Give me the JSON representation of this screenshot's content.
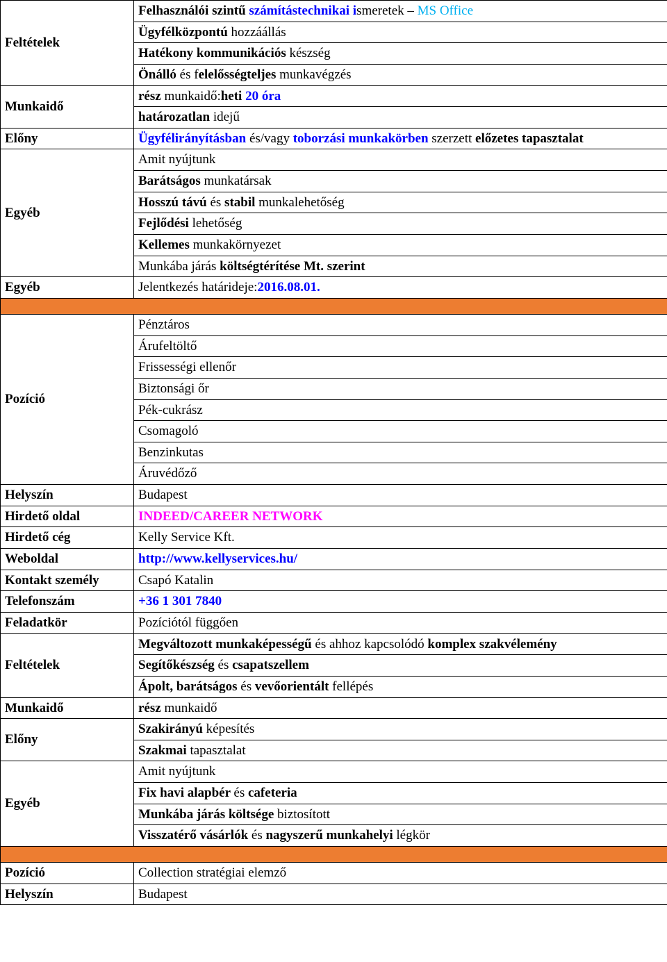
{
  "colors": {
    "border": "#000000",
    "orange": "#ed7d31",
    "blue": "#0000ff",
    "cyan": "#00b0f0",
    "magenta": "#ff00ff",
    "text": "#000000",
    "background": "#ffffff"
  },
  "typography": {
    "font_family": "Times New Roman",
    "font_size_pt": 14
  },
  "section1": {
    "feltetelek": {
      "label": "Feltételek",
      "r1": {
        "p1": "Felhasználói szintű ",
        "p2": "számítástechnikai i",
        "p3": "smeretek – ",
        "p4": "MS Office"
      },
      "r2": {
        "p1": "Ügyfélközpontú",
        "p2": " hozzáállás"
      },
      "r3": {
        "p1": "Hatékony kommunikációs",
        "p2": " készség"
      },
      "r4": {
        "p1": "Önálló",
        "p2": " és f",
        "p3": "elelősségteljes",
        "p4": " munkavégzés"
      }
    },
    "munkaido": {
      "label": "Munkaidő",
      "r1": {
        "p1": "rész",
        "p2": " munkaidő:",
        "p3": "heti ",
        "p4": "20 óra"
      },
      "r2": {
        "p1": "határozatlan",
        "p2": " idejű"
      }
    },
    "elony": {
      "label": "Előny",
      "r1": {
        "p1": "Ügyfélirányításban ",
        "p2": "és/vagy ",
        "p3": "toborzási munkakörben ",
        "p4": "szerzett ",
        "p5": "előzetes tapasztalat"
      }
    },
    "egyeb1": {
      "label": "Egyéb",
      "r1": "Amit nyújtunk",
      "r2": {
        "p1": "Barátságos",
        "p2": " munkatársak"
      },
      "r3": {
        "p1": "Hosszú távú",
        "p2": " és ",
        "p3": "stabil",
        "p4": " munkalehetőség"
      },
      "r4": {
        "p1": "Fejlődési",
        "p2": " lehetőség"
      },
      "r5": {
        "p1": "Kellemes",
        "p2": " munkakörnyezet"
      },
      "r6": {
        "p1": "Munkába járás ",
        "p2": "költségtérítése Mt. szerint"
      }
    },
    "egyeb2": {
      "label": "Egyéb",
      "r1": {
        "p1": "Jelentkezés határideje:",
        "p2": "2016.08.01."
      }
    }
  },
  "section2": {
    "pozicio": {
      "label": "Pozíció",
      "items": [
        "Pénztáros",
        "Árufeltöltő",
        "Frissességi ellenőr",
        "Biztonsági őr",
        "Pék-cukrász",
        "Csomagoló",
        "Benzinkutas",
        "Áruvédőző"
      ]
    },
    "helyszin": {
      "label": "Helyszín",
      "value": "Budapest"
    },
    "hirdeto_oldal": {
      "label": "Hirdető oldal",
      "value": "INDEED/CAREER NETWORK"
    },
    "hirdeto_ceg": {
      "label": "Hirdető cég",
      "value": "Kelly Service Kft."
    },
    "weboldal": {
      "label": "Weboldal",
      "value": "http://www.kellyservices.hu/"
    },
    "kontakt": {
      "label": "Kontakt személy",
      "value": "Csapó Katalin"
    },
    "telefon": {
      "label": "Telefonszám",
      "value": "+36 1 301 7840"
    },
    "feladatkor": {
      "label": "Feladatkör",
      "value": "Pozíciótól függően"
    },
    "feltetelek": {
      "label": "Feltételek",
      "r1": {
        "p1": "Megváltozott munkaképességű ",
        "p2": "és ahhoz kapcsolódó ",
        "p3": "komplex szakvélemény"
      },
      "r2": {
        "p1": "Segítőkészség ",
        "p2": "és ",
        "p3": "csapatszellem"
      },
      "r3": {
        "p1": "Ápolt, barátságos ",
        "p2": "és ",
        "p3": "vevőorientált ",
        "p4": "fellépés"
      }
    },
    "munkaido": {
      "label": "Munkaidő",
      "r1": {
        "p1": "rész",
        "p2": " munkaidő"
      }
    },
    "elony": {
      "label": "Előny",
      "r1": {
        "p1": "Szakirányú",
        "p2": " képesítés"
      },
      "r2": {
        "p1": "Szakmai",
        "p2": " tapasztalat"
      }
    },
    "egyeb": {
      "label": "Egyéb",
      "r1": "Amit nyújtunk",
      "r2": {
        "p1": "Fix havi alapbér ",
        "p2": "és ",
        "p3": "cafeteria"
      },
      "r3": {
        "p1": "Munkába járás költsége ",
        "p2": "biztosított"
      },
      "r4": {
        "p1": "Visszatérő vásárlók ",
        "p2": "és ",
        "p3": "nagyszerű munkahelyi ",
        "p4": "légkör"
      }
    }
  },
  "section3": {
    "pozicio": {
      "label": "Pozíció",
      "value": "Collection stratégiai elemző"
    },
    "helyszin": {
      "label": "Helyszín",
      "value": "Budapest"
    }
  }
}
